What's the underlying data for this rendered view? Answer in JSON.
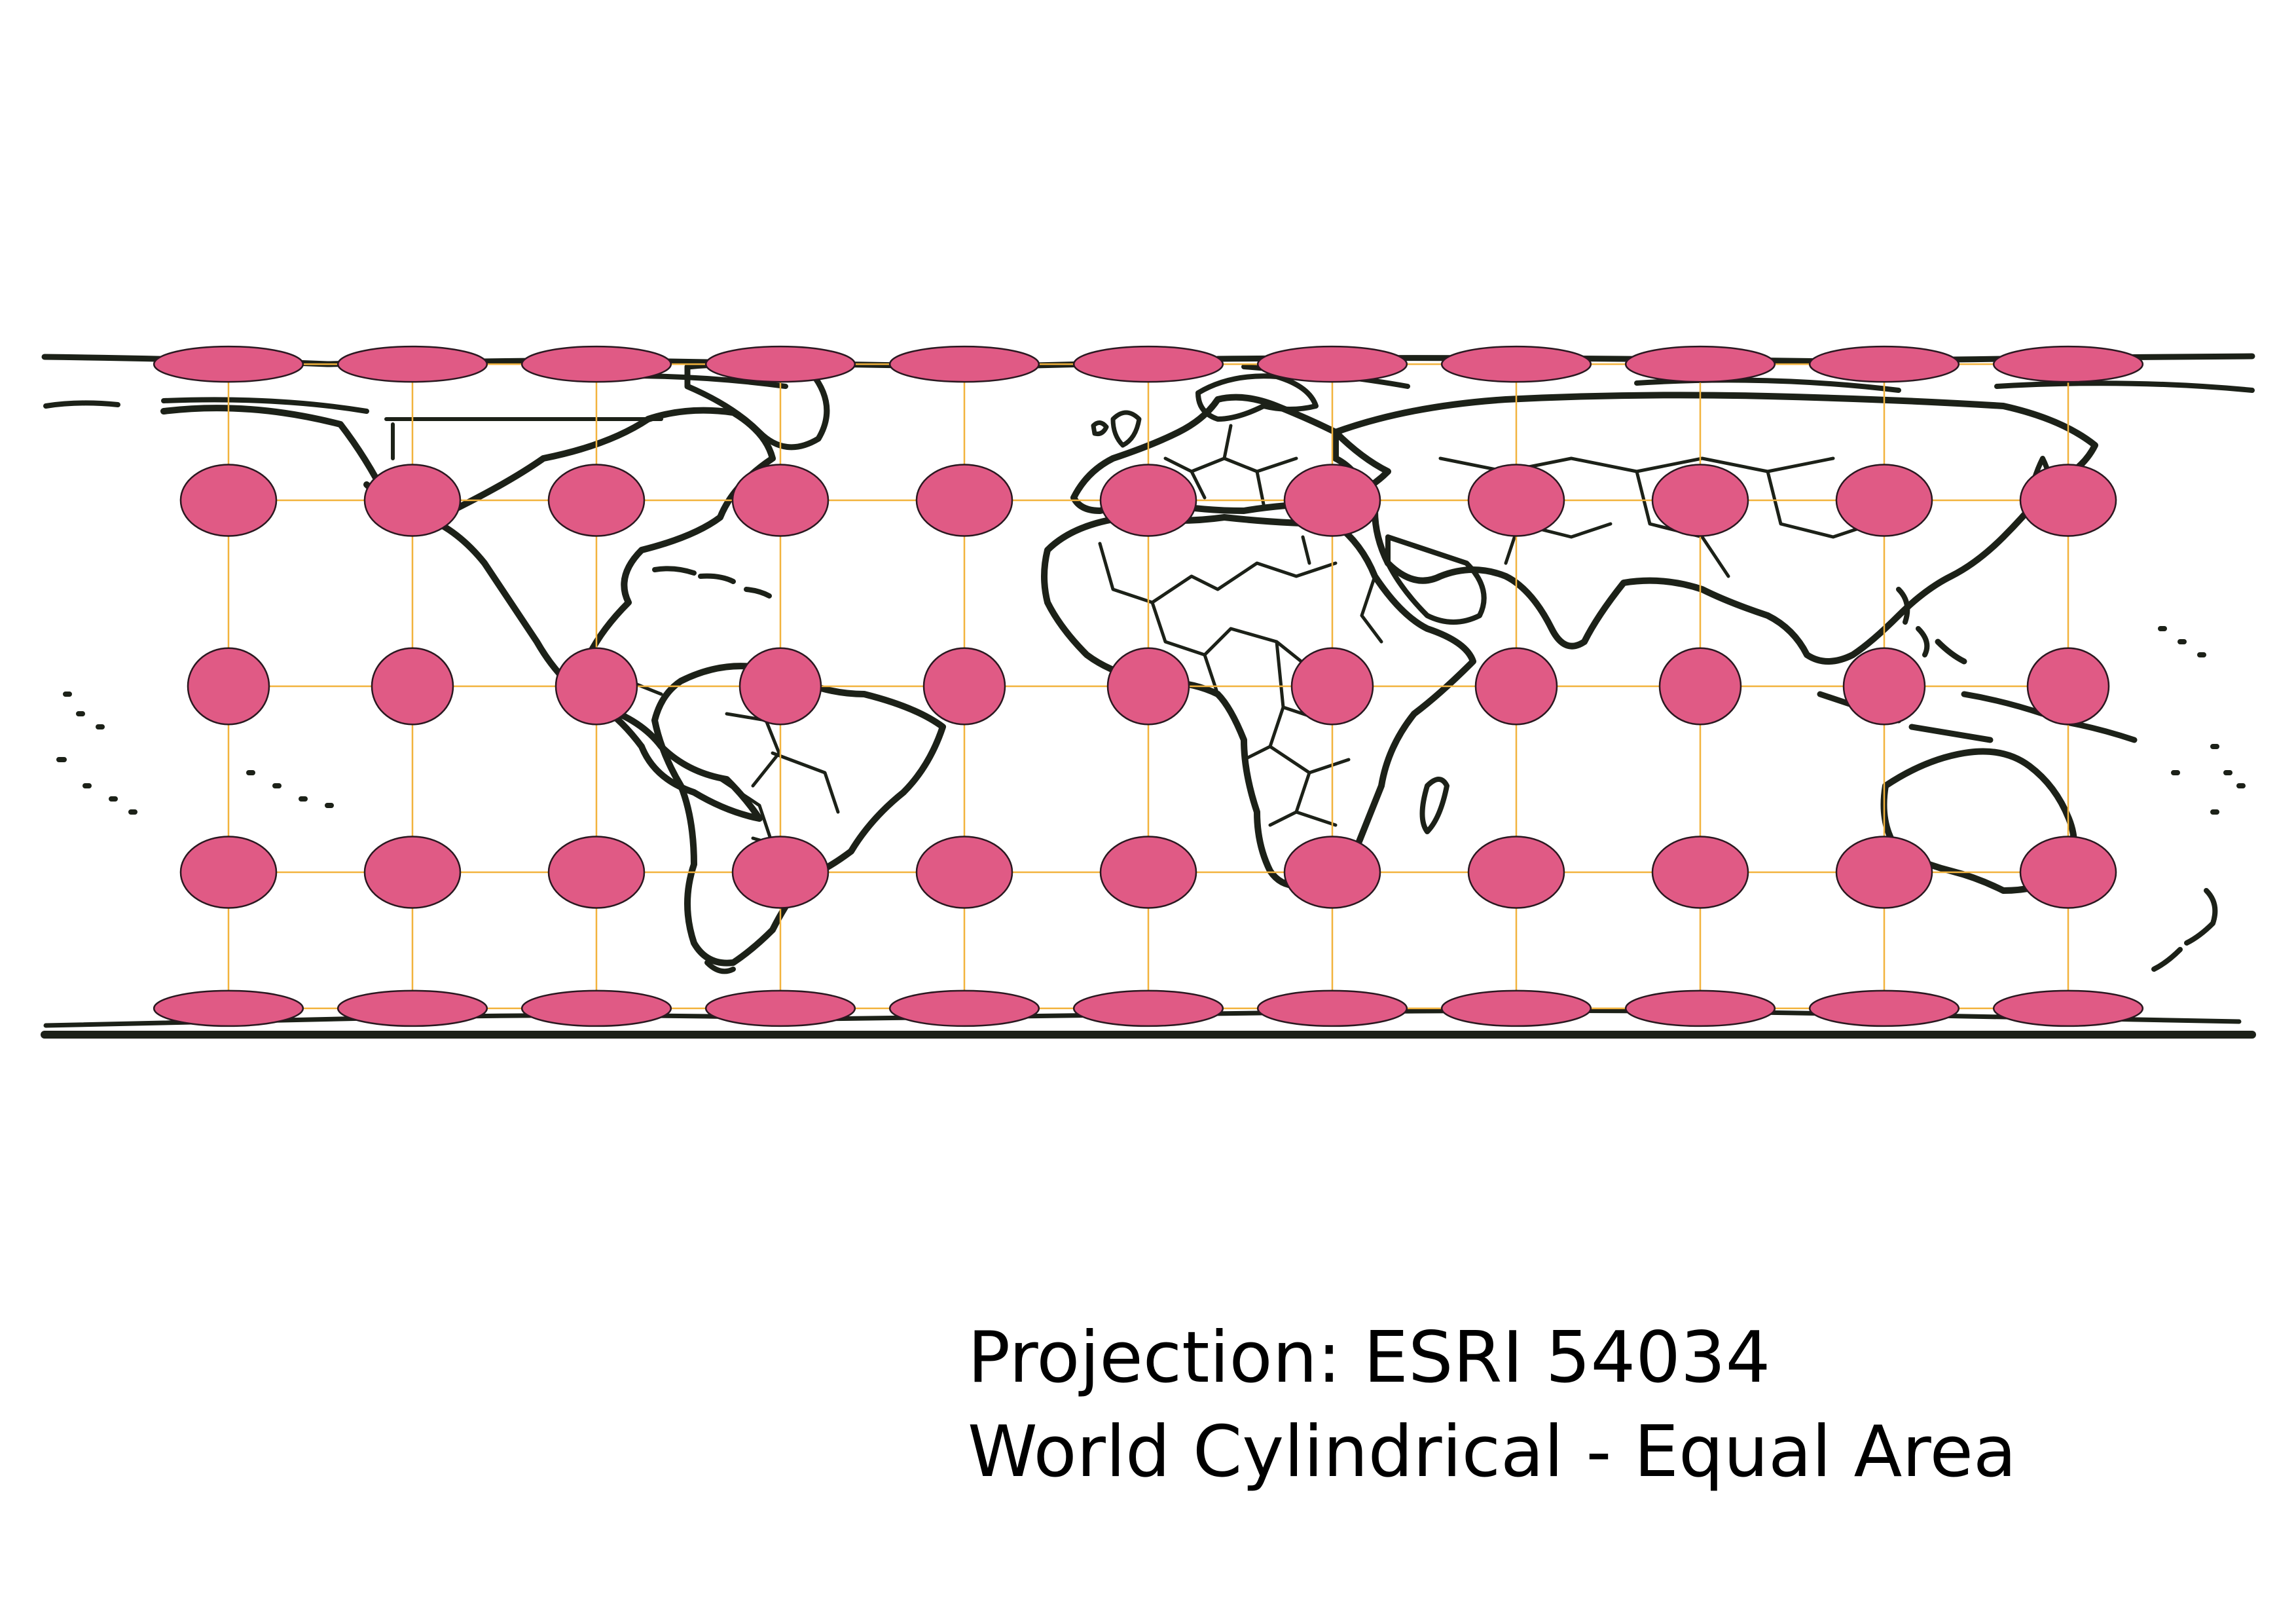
{
  "caption": {
    "line1": "Projection: ESRI 54034",
    "line2": "World Cylindrical - Equal Area"
  },
  "map": {
    "projection": "World Cylindrical Equal Area",
    "colors": {
      "coastline": "#1c2118",
      "graticule": "#f2b33d",
      "ellipse_fill": "#e05a85",
      "ellipse_stroke": "#2a1820"
    },
    "meridians_deg": [
      -150,
      -120,
      -90,
      -60,
      -30,
      0,
      30,
      60,
      90,
      120,
      150
    ],
    "parallels_deg": [
      -60,
      -30,
      0,
      30,
      60
    ],
    "indicatrix_latitudes_deg": [
      60,
      30,
      0,
      -30,
      -60
    ]
  }
}
